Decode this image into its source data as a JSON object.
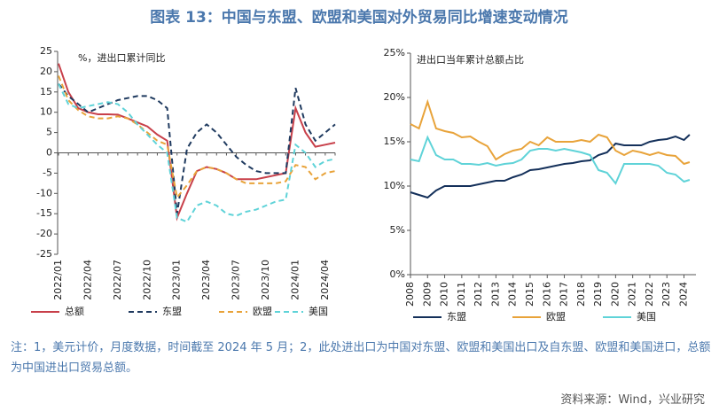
{
  "title": "图表 13：中国与东盟、欧盟和美国对外贸易同比增速变动情况",
  "note": "注：1，美元计价，月度数据，时间截至 2024 年 5 月；2，此处进出口为中国对东盟、欧盟和美国出口及自东盟、欧盟和美国进口，总额为中国进出口贸易总额。",
  "source": "资料来源：Wind，兴业研究",
  "chart_data": [
    {
      "type": "line",
      "annotation": "%，进出口累计同比",
      "legend": "bottom",
      "categories": [
        "2022/01",
        null,
        null,
        "2022/04",
        null,
        null,
        "2022/07",
        null,
        null,
        "2022/10",
        null,
        null,
        "2023/01",
        null,
        null,
        "2023/04",
        null,
        null,
        "2023/07",
        null,
        null,
        "2023/10",
        null,
        null,
        "2024/01",
        null,
        null,
        "2024/04",
        null
      ],
      "ylim": [
        -25,
        25
      ],
      "yticks": [
        -25,
        -20,
        -15,
        -10,
        -5,
        0,
        5,
        10,
        15,
        20,
        25
      ],
      "series": [
        {
          "name": "总额",
          "color": "#c8404a",
          "dash": false,
          "values": [
            22,
            15,
            11,
            10,
            9.5,
            9.5,
            9.4,
            8.5,
            7.5,
            6.5,
            4.5,
            3,
            -16,
            -10,
            -4.5,
            -3.5,
            -4,
            -5,
            -6.5,
            -6.5,
            -6.5,
            -6,
            -5.5,
            -5,
            11,
            5,
            1.5,
            2,
            2.5
          ]
        },
        {
          "name": "东盟",
          "color": "#1f3a5f",
          "dash": true,
          "values": [
            17,
            14,
            12,
            10,
            11,
            12,
            13,
            13.5,
            14,
            14,
            13,
            11,
            -15,
            1,
            5,
            7,
            5,
            2,
            -1,
            -3,
            -4.5,
            -5,
            -5,
            -5,
            16,
            7,
            3,
            5,
            7
          ]
        },
        {
          "name": "欧盟",
          "color": "#e8a33a",
          "dash": true,
          "values": [
            19,
            13,
            10.5,
            9,
            8.5,
            8.5,
            9,
            8.5,
            7,
            5,
            3,
            2,
            -11,
            -8,
            -4.5,
            -3.5,
            -4,
            -5,
            -6.5,
            -7.5,
            -7.5,
            -7.5,
            -7.5,
            -7,
            -3,
            -3.5,
            -6.5,
            -5,
            -4.5
          ]
        },
        {
          "name": "美国",
          "color": "#5fd3d8",
          "dash": true,
          "values": [
            17,
            12,
            11,
            11.5,
            12,
            12.5,
            12,
            10,
            7,
            4.5,
            2,
            0,
            -16,
            -17,
            -13,
            -12,
            -13,
            -15,
            -15.5,
            -14.5,
            -14,
            -13,
            -12,
            -11.5,
            2,
            0,
            -3.5,
            -2,
            -1.5
          ]
        }
      ]
    },
    {
      "type": "line",
      "annotation": "进出口当年累计总额占比",
      "legend": "bottom",
      "x": [
        2008,
        2008.5,
        2009,
        2009.5,
        2010,
        2010.5,
        2011,
        2011.5,
        2012,
        2012.5,
        2013,
        2013.5,
        2014,
        2014.5,
        2015,
        2015.5,
        2016,
        2016.5,
        2017,
        2017.5,
        2018,
        2018.5,
        2019,
        2019.5,
        2020,
        2020.5,
        2021,
        2021.5,
        2022,
        2022.5,
        2023,
        2023.5,
        2024,
        2024.33
      ],
      "xlim": [
        2008,
        2024.7
      ],
      "xticks": [
        2008,
        2009,
        2010,
        2011,
        2012,
        2013,
        2014,
        2015,
        2016,
        2017,
        2018,
        2019,
        2020,
        2021,
        2022,
        2023,
        2024
      ],
      "ylim": [
        0,
        25
      ],
      "yticks": [
        {
          "value": 0,
          "label": "0%"
        },
        {
          "value": 5,
          "label": "5%"
        },
        {
          "value": 10,
          "label": "10%"
        },
        {
          "value": 15,
          "label": "15%"
        },
        {
          "value": 20,
          "label": "20%"
        },
        {
          "value": 25,
          "label": "25%"
        }
      ],
      "series": [
        {
          "name": "东盟",
          "color": "#14305a",
          "dash": false,
          "values": [
            9.3,
            9.0,
            8.7,
            9.5,
            10.0,
            10.0,
            10.0,
            10.0,
            10.2,
            10.4,
            10.6,
            10.6,
            11.0,
            11.3,
            11.8,
            11.9,
            12.1,
            12.3,
            12.5,
            12.6,
            12.8,
            12.9,
            13.5,
            13.8,
            14.8,
            14.6,
            14.6,
            14.6,
            15.0,
            15.2,
            15.3,
            15.6,
            15.2,
            15.8
          ]
        },
        {
          "name": "欧盟",
          "color": "#e8a33a",
          "dash": false,
          "values": [
            17.0,
            16.5,
            19.5,
            16.5,
            16.2,
            16.0,
            15.5,
            15.6,
            15.0,
            14.5,
            13.0,
            13.6,
            14.0,
            14.2,
            15.0,
            14.6,
            15.5,
            15.0,
            15.0,
            15.0,
            15.2,
            15.0,
            15.8,
            15.5,
            14.0,
            13.5,
            14.0,
            13.8,
            13.5,
            13.8,
            13.5,
            13.4,
            12.5,
            12.7
          ]
        },
        {
          "name": "美国",
          "color": "#5fd3d8",
          "dash": false,
          "values": [
            13.0,
            12.8,
            15.5,
            13.5,
            13.0,
            13.0,
            12.5,
            12.5,
            12.4,
            12.6,
            12.3,
            12.5,
            12.6,
            13.0,
            14.0,
            14.2,
            14.2,
            14.0,
            14.2,
            14.0,
            13.8,
            13.5,
            11.8,
            11.5,
            10.3,
            12.5,
            12.5,
            12.5,
            12.5,
            12.3,
            11.5,
            11.3,
            10.5,
            10.7
          ]
        }
      ]
    }
  ]
}
